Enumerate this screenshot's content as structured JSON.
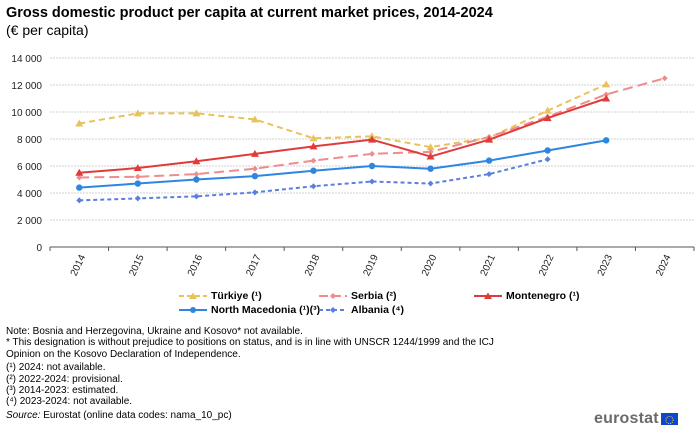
{
  "chart_data": {
    "type": "line",
    "title": "Gross domestic product per capita at current market prices, 2014-2024",
    "subtitle": "(€ per capita)",
    "xlabel": "",
    "ylabel": "",
    "ylim": [
      0,
      14000
    ],
    "yticks": [
      0,
      2000,
      4000,
      6000,
      8000,
      10000,
      12000,
      14000
    ],
    "ytick_labels": [
      "0",
      "2 000",
      "4 000",
      "6 000",
      "8 000",
      "10 000",
      "12 000",
      "14 000"
    ],
    "grid": true,
    "legend_position": "bottom",
    "categories": [
      "2014",
      "2015",
      "2016",
      "2017",
      "2018",
      "2019",
      "2020",
      "2021",
      "2022",
      "2023",
      "2024"
    ],
    "series": [
      {
        "name": "Türkiye (¹)",
        "color": "#e8c35a",
        "dash": "dashed",
        "marker": "triangle",
        "values": [
          9150,
          9900,
          9900,
          9450,
          8050,
          8200,
          7400,
          8100,
          10100,
          12050,
          null
        ]
      },
      {
        "name": "Serbia (²)",
        "color": "#f08c8c",
        "dash": "longdash",
        "marker": "diamond",
        "values": [
          5150,
          5200,
          5400,
          5800,
          6400,
          6900,
          7050,
          8150,
          9650,
          11300,
          12500
        ]
      },
      {
        "name": "Montenegro (¹)",
        "color": "#e03b3b",
        "dash": "solid",
        "marker": "triangle",
        "values": [
          5500,
          5850,
          6350,
          6900,
          7450,
          7950,
          6700,
          7950,
          9550,
          11000,
          null
        ]
      },
      {
        "name": "North Macedonia (¹)(³)",
        "color": "#2e86e0",
        "dash": "solid",
        "marker": "circle",
        "values": [
          4400,
          4700,
          5000,
          5250,
          5650,
          6000,
          5800,
          6400,
          7150,
          7900,
          null
        ]
      },
      {
        "name": "Albania (⁴)",
        "color": "#5b7fe0",
        "dash": "dotted",
        "marker": "diamond",
        "values": [
          3450,
          3600,
          3750,
          4050,
          4500,
          4850,
          4700,
          5400,
          6500,
          null,
          null
        ]
      }
    ]
  },
  "notes": {
    "line1": "Note: Bosnia and Herzegovina,  Ukraine and  Kosovo* not available.",
    "line2": "* This designation is without prejudice to positions on status, and is in line with UNSCR 1244/1999 and the ICJ",
    "line3": "Opinion on the Kosovo Declaration of Independence.",
    "fn1": "(¹) 2024: not available.",
    "fn2": "(²) 2022-2024: provisional.",
    "fn3": "(³) 2014-2023: estimated.",
    "fn4": "(⁴) 2023-2024: not available.",
    "source_label": "Source:",
    "source_text": " Eurostat (online data codes: nama_10_pc)"
  },
  "logo": {
    "text": "eurostat"
  }
}
